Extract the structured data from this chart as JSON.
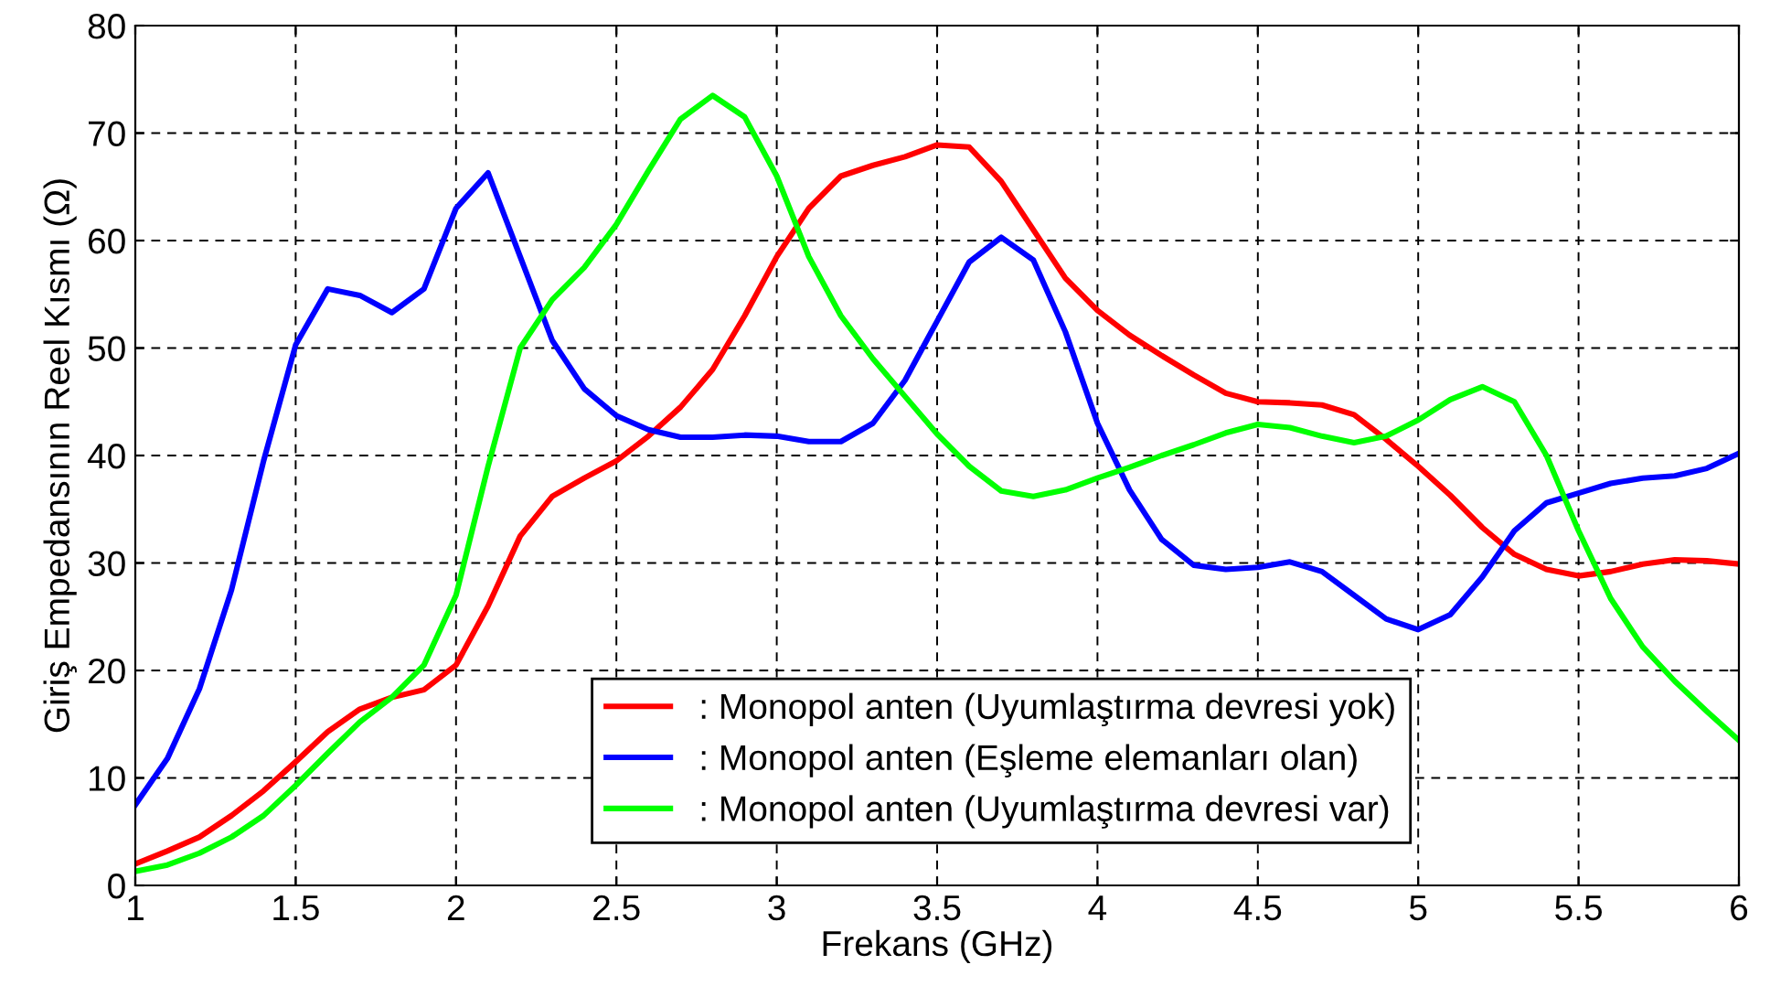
{
  "chart_data": {
    "type": "line",
    "xlabel": "Frekans (GHz)",
    "ylabel": "Giriş Empedansının Reel Kısmı (Ω)",
    "x": [
      1.0,
      1.1,
      1.2,
      1.3,
      1.4,
      1.5,
      1.6,
      1.7,
      1.8,
      1.9,
      2.0,
      2.1,
      2.2,
      2.3,
      2.4,
      2.5,
      2.6,
      2.7,
      2.8,
      2.9,
      3.0,
      3.1,
      3.2,
      3.3,
      3.4,
      3.5,
      3.6,
      3.7,
      3.8,
      3.9,
      4.0,
      4.1,
      4.2,
      4.3,
      4.4,
      4.5,
      4.6,
      4.7,
      4.8,
      4.9,
      5.0,
      5.1,
      5.2,
      5.3,
      5.4,
      5.5,
      5.6,
      5.7,
      5.8,
      5.9,
      6.0
    ],
    "series": [
      {
        "name": ": Monopol anten (Uyumlaştırma devresi yok)",
        "color": "#ff0000",
        "values": [
          2,
          3.2,
          4.5,
          6.5,
          8.8,
          11.5,
          14.3,
          16.4,
          17.5,
          18.2,
          20.5,
          26,
          32.5,
          36.2,
          37.9,
          39.5,
          41.8,
          44.5,
          48,
          53,
          58.5,
          63,
          66,
          67,
          67.8,
          68.9,
          68.7,
          65.5,
          61,
          56.5,
          53.5,
          51.2,
          49.3,
          47.5,
          45.8,
          45,
          44.9,
          44.7,
          43.8,
          41.5,
          39,
          36.3,
          33.3,
          30.8,
          29.4,
          28.8,
          29.2,
          29.9,
          30.3,
          30.2,
          29.9
        ]
      },
      {
        "name": ": Monopol anten (Eşleme elemanları olan)",
        "color": "#0000ff",
        "values": [
          7.5,
          11.8,
          18.3,
          27.5,
          39.5,
          50.3,
          55.5,
          54.9,
          53.3,
          55.5,
          63,
          66.3,
          58.5,
          50.7,
          46.2,
          43.7,
          42.4,
          41.7,
          41.7,
          41.9,
          41.8,
          41.3,
          41.3,
          43,
          47,
          52.5,
          58,
          60.3,
          58.2,
          51.5,
          43,
          36.8,
          32.2,
          29.8,
          29.4,
          29.6,
          30.1,
          29.2,
          27,
          24.8,
          23.8,
          25.2,
          28.7,
          33,
          35.6,
          36.5,
          37.4,
          37.9,
          38.1,
          38.8,
          40.2
        ]
      },
      {
        "name": ": Monopol anten (Uyumlaştırma devresi var)",
        "color": "#00ff00",
        "values": [
          1.3,
          1.9,
          3,
          4.5,
          6.5,
          9.3,
          12.3,
          15.2,
          17.5,
          20.5,
          27,
          39,
          50,
          54.5,
          57.5,
          61.5,
          66.5,
          71.3,
          73.5,
          71.5,
          66,
          58.5,
          53,
          49,
          45.5,
          42,
          39,
          36.7,
          36.2,
          36.8,
          37.9,
          38.9,
          40,
          41,
          42.1,
          42.9,
          42.6,
          41.8,
          41.2,
          41.8,
          43.3,
          45.2,
          46.4,
          45,
          40,
          33,
          26.7,
          22.2,
          19,
          16.2,
          13.5
        ]
      }
    ],
    "xlim": [
      1,
      6
    ],
    "xticks": [
      1,
      1.5,
      2,
      2.5,
      3,
      3.5,
      4,
      4.5,
      5,
      5.5,
      6
    ],
    "ylim": [
      0,
      80
    ],
    "yticks": [
      0,
      10,
      20,
      30,
      40,
      50,
      60,
      70,
      80
    ],
    "grid": true,
    "legend": "bottom",
    "line_style": "solid",
    "marker": "none"
  }
}
